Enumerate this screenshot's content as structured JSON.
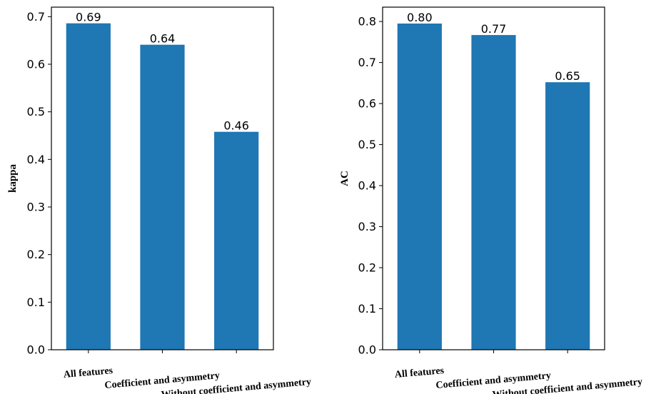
{
  "chart_data": [
    {
      "type": "bar",
      "categories": [
        "All features",
        "Coefficient and asymmetry",
        "Without coefficient and asymmetry"
      ],
      "values": [
        0.686,
        0.641,
        0.458
      ],
      "value_labels": [
        "0.69",
        "0.64",
        "0.46"
      ],
      "xlabel": "",
      "ylabel": "kappa",
      "ylim": [
        0,
        0.72
      ],
      "yticks": [
        0.0,
        0.1,
        0.2,
        0.3,
        0.4,
        0.5,
        0.6,
        0.7
      ],
      "ytick_labels": [
        "0.0",
        "0.1",
        "0.2",
        "0.3",
        "0.4",
        "0.5",
        "0.6",
        "0.7"
      ],
      "bar_color": "#1f77b4",
      "grid": false
    },
    {
      "type": "bar",
      "categories": [
        "All features",
        "Coefficient and asymmetry",
        "Without coefficient and asymmetry"
      ],
      "values": [
        0.795,
        0.767,
        0.652
      ],
      "value_labels": [
        "0.80",
        "0.77",
        "0.65"
      ],
      "xlabel": "",
      "ylabel": "AC",
      "ylim": [
        0,
        0.835
      ],
      "yticks": [
        0.0,
        0.1,
        0.2,
        0.3,
        0.4,
        0.5,
        0.6,
        0.7,
        0.8
      ],
      "ytick_labels": [
        "0.0",
        "0.1",
        "0.2",
        "0.3",
        "0.4",
        "0.5",
        "0.6",
        "0.7",
        "0.8"
      ],
      "bar_color": "#1f77b4",
      "grid": false
    }
  ]
}
